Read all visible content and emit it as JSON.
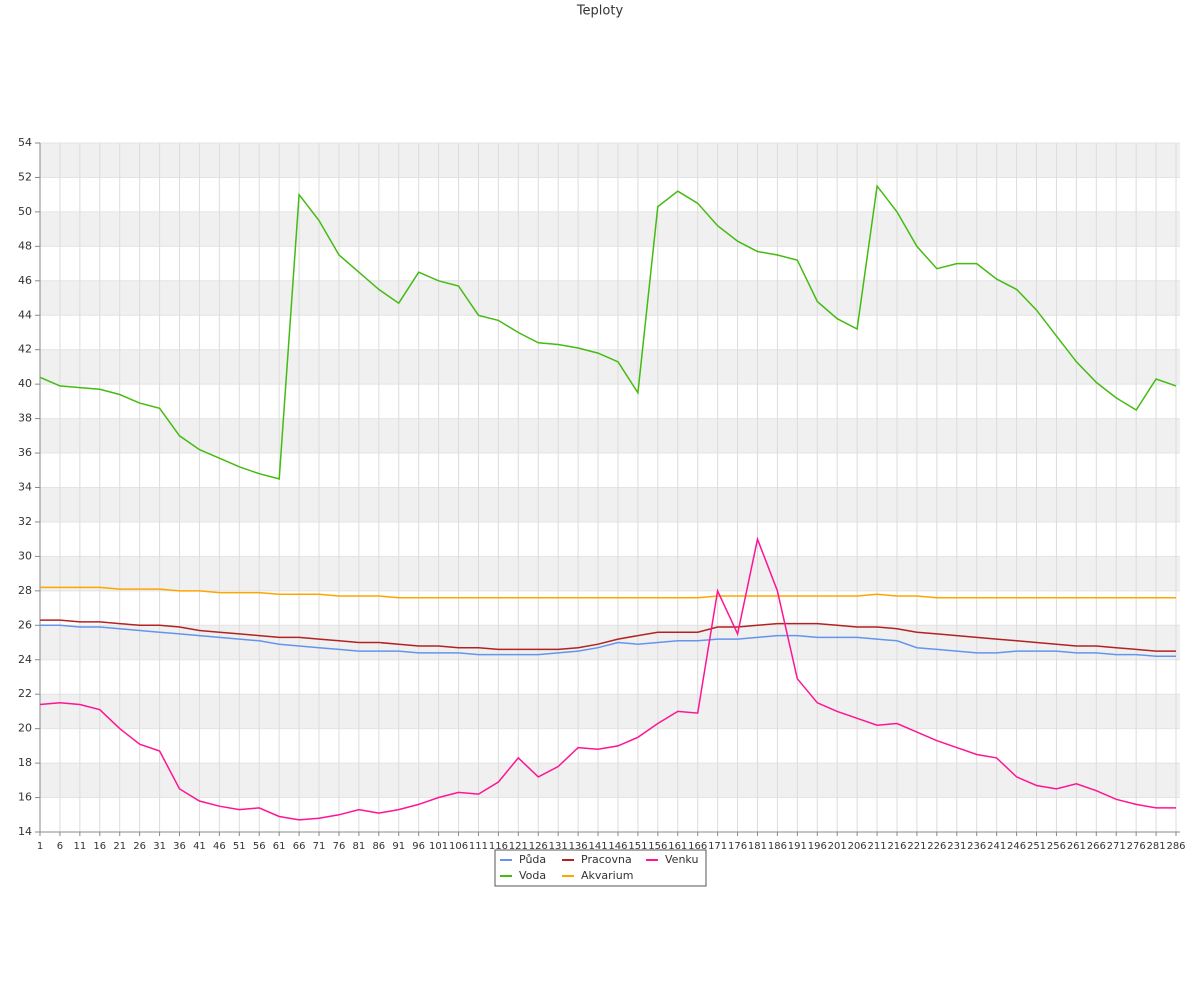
{
  "chart_data": {
    "type": "line",
    "title": "Teploty",
    "x": [
      1,
      6,
      11,
      16,
      21,
      26,
      31,
      36,
      41,
      46,
      51,
      56,
      61,
      66,
      71,
      76,
      81,
      86,
      91,
      96,
      101,
      106,
      111,
      116,
      121,
      126,
      131,
      136,
      141,
      146,
      151,
      156,
      161,
      166,
      171,
      176,
      181,
      186,
      191,
      196,
      201,
      206,
      211,
      216,
      221,
      226,
      231,
      236,
      241,
      246,
      251,
      256,
      261,
      266,
      271,
      276,
      281,
      286
    ],
    "xlim": [
      1,
      287
    ],
    "xticks": [
      1,
      6,
      11,
      16,
      21,
      26,
      31,
      36,
      41,
      46,
      51,
      56,
      61,
      66,
      71,
      76,
      81,
      86,
      91,
      96,
      101,
      106,
      111,
      116,
      121,
      126,
      131,
      136,
      141,
      146,
      151,
      156,
      161,
      166,
      171,
      176,
      181,
      186,
      191,
      196,
      201,
      206,
      211,
      216,
      221,
      226,
      231,
      236,
      241,
      246,
      251,
      256,
      261,
      266,
      271,
      276,
      281,
      286
    ],
    "ylim": [
      14,
      54
    ],
    "yticks": [
      14,
      16,
      18,
      20,
      22,
      24,
      26,
      28,
      30,
      32,
      34,
      36,
      38,
      40,
      42,
      44,
      46,
      48,
      50,
      52,
      54
    ],
    "grid": true,
    "series": [
      {
        "name": "Půda",
        "color": "#6495ed",
        "values": [
          26.0,
          26.0,
          25.9,
          25.9,
          25.8,
          25.7,
          25.6,
          25.5,
          25.4,
          25.3,
          25.2,
          25.1,
          24.9,
          24.8,
          24.7,
          24.6,
          24.5,
          24.5,
          24.5,
          24.4,
          24.4,
          24.4,
          24.3,
          24.3,
          24.3,
          24.3,
          24.4,
          24.5,
          24.7,
          25.0,
          24.9,
          25.0,
          25.1,
          25.1,
          25.2,
          25.2,
          25.3,
          25.4,
          25.4,
          25.3,
          25.3,
          25.3,
          25.2,
          25.1,
          24.7,
          24.6,
          24.5,
          24.4,
          24.4,
          24.5,
          24.5,
          24.5,
          24.4,
          24.4,
          24.3,
          24.3,
          24.2,
          24.2
        ]
      },
      {
        "name": "Voda",
        "color": "#44bb11",
        "values": [
          40.4,
          39.9,
          39.8,
          39.7,
          39.4,
          38.9,
          38.6,
          37.0,
          36.2,
          35.7,
          35.2,
          34.8,
          34.5,
          51.0,
          49.5,
          47.5,
          46.5,
          45.5,
          44.7,
          46.5,
          46.0,
          45.7,
          44.0,
          43.7,
          43.0,
          42.4,
          42.3,
          42.1,
          41.8,
          41.3,
          39.5,
          50.3,
          51.2,
          50.5,
          49.2,
          48.3,
          47.7,
          47.5,
          47.2,
          44.8,
          43.8,
          43.2,
          51.5,
          50.0,
          48.0,
          46.7,
          47.0,
          47.0,
          46.1,
          45.5,
          44.3,
          42.8,
          41.3,
          40.1,
          39.2,
          38.5,
          40.3,
          39.9
        ]
      },
      {
        "name": "Pracovna",
        "color": "#b22222",
        "values": [
          26.3,
          26.3,
          26.2,
          26.2,
          26.1,
          26.0,
          26.0,
          25.9,
          25.7,
          25.6,
          25.5,
          25.4,
          25.3,
          25.3,
          25.2,
          25.1,
          25.0,
          25.0,
          24.9,
          24.8,
          24.8,
          24.7,
          24.7,
          24.6,
          24.6,
          24.6,
          24.6,
          24.7,
          24.9,
          25.2,
          25.4,
          25.6,
          25.6,
          25.6,
          25.9,
          25.9,
          26.0,
          26.1,
          26.1,
          26.1,
          26.0,
          25.9,
          25.9,
          25.8,
          25.6,
          25.5,
          25.4,
          25.3,
          25.2,
          25.1,
          25.0,
          24.9,
          24.8,
          24.8,
          24.7,
          24.6,
          24.5,
          24.5
        ]
      },
      {
        "name": "Akvarium",
        "color": "#ffa500",
        "values": [
          28.2,
          28.2,
          28.2,
          28.2,
          28.1,
          28.1,
          28.1,
          28.0,
          28.0,
          27.9,
          27.9,
          27.9,
          27.8,
          27.8,
          27.8,
          27.7,
          27.7,
          27.7,
          27.6,
          27.6,
          27.6,
          27.6,
          27.6,
          27.6,
          27.6,
          27.6,
          27.6,
          27.6,
          27.6,
          27.6,
          27.6,
          27.6,
          27.6,
          27.6,
          27.7,
          27.7,
          27.7,
          27.7,
          27.7,
          27.7,
          27.7,
          27.7,
          27.8,
          27.7,
          27.7,
          27.6,
          27.6,
          27.6,
          27.6,
          27.6,
          27.6,
          27.6,
          27.6,
          27.6,
          27.6,
          27.6,
          27.6,
          27.6
        ]
      },
      {
        "name": "Venku",
        "color": "#ff1493",
        "values": [
          21.4,
          21.5,
          21.4,
          21.1,
          20.0,
          19.1,
          18.7,
          16.5,
          15.8,
          15.5,
          15.3,
          15.4,
          14.9,
          14.7,
          14.8,
          15.0,
          15.3,
          15.1,
          15.3,
          15.6,
          16.0,
          16.3,
          16.2,
          16.9,
          18.3,
          17.2,
          17.8,
          18.9,
          18.8,
          19.0,
          19.5,
          20.3,
          21.0,
          20.9,
          28.0,
          25.5,
          31.0,
          28.0,
          22.9,
          21.5,
          21.0,
          20.6,
          20.2,
          20.3,
          19.8,
          19.3,
          18.9,
          18.5,
          18.3,
          17.2,
          16.7,
          16.5,
          16.8,
          16.4,
          15.9,
          15.6,
          15.4,
          15.4
        ]
      }
    ]
  }
}
